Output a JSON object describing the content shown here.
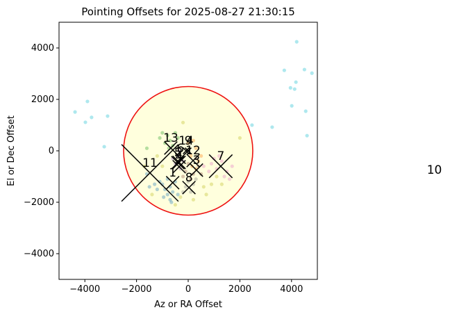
{
  "chart_data": {
    "type": "scatter",
    "title": "Pointing Offsets for 2025-08-27 21:30:15",
    "xlabel": "Az or RA Offset",
    "ylabel": "El or Dec Offset",
    "xlim": [
      -5000,
      5000
    ],
    "ylim": [
      -5000,
      5000
    ],
    "xticks": [
      {
        "value": -4000,
        "label": "−4000"
      },
      {
        "value": -2000,
        "label": "−2000"
      },
      0,
      2000,
      4000
    ],
    "yticks": [
      {
        "value": -4000,
        "label": "−4000"
      },
      {
        "value": -2000,
        "label": "−2000"
      },
      0,
      2000,
      4000
    ],
    "circle": {
      "radius": 2500,
      "edge_color": "#ee1111",
      "fill_color": "#ffffdd"
    },
    "series": [
      {
        "color": "#17becf",
        "x": [
          4200,
          3720,
          4500,
          4170,
          3960,
          4120,
          4790,
          4010,
          4550,
          3250,
          2470,
          4600,
          -4380,
          -3900,
          -3740,
          -3980,
          -3120,
          -3250
        ],
        "y": [
          4240,
          3130,
          3160,
          2670,
          2450,
          2400,
          3020,
          1750,
          1540,
          920,
          1000,
          590,
          1510,
          1920,
          1300,
          1110,
          1350,
          160
        ]
      },
      {
        "color": "#bcbd22",
        "x": [
          -1700,
          -1200,
          -300,
          600,
          900,
          -1000,
          1100,
          -200,
          700,
          -1400,
          200,
          1300,
          -500,
          2000
        ],
        "y": [
          -600,
          -200,
          -1800,
          -1400,
          -1300,
          -600,
          -1000,
          1100,
          -1700,
          -1700,
          -1900,
          -1300,
          -2100,
          500
        ]
      },
      {
        "color": "#1f77b4",
        "x": [
          -1000,
          -900,
          -800,
          -1100,
          -700,
          -600,
          -1300,
          -500,
          -950,
          -1200,
          -700,
          -400,
          -1500,
          -800,
          -1600,
          -650
        ],
        "y": [
          -1300,
          -1500,
          -1700,
          -1200,
          -1900,
          -1600,
          -1300,
          -1200,
          -1800,
          -1500,
          -1400,
          -1700,
          -1400,
          -1100,
          -900,
          -2000
        ]
      },
      {
        "color": "#2ca02c",
        "x": [
          -1000,
          -800,
          -700,
          -900,
          -600,
          -1100,
          -500,
          -750,
          -1600,
          -400
        ],
        "y": [
          700,
          600,
          400,
          300,
          200,
          500,
          700,
          100,
          100,
          500
        ]
      },
      {
        "color": "#ff7f0e",
        "x": [
          200,
          300,
          100,
          400,
          150,
          300,
          0,
          500
        ],
        "y": [
          400,
          100,
          -200,
          -400,
          -600,
          -700,
          300,
          -200
        ]
      },
      {
        "color": "#9467bd",
        "x": [
          -400,
          -500,
          -300,
          -600,
          -200,
          -350
        ],
        "y": [
          -200,
          -500,
          -700,
          -300,
          -400,
          0
        ]
      },
      {
        "color": "#8c564b",
        "x": [
          0,
          200,
          -100,
          400,
          100,
          300,
          -200,
          500
        ],
        "y": [
          -500,
          -900,
          -800,
          -600,
          -1100,
          -300,
          -1000,
          -900
        ]
      },
      {
        "color": "#e377c2",
        "x": [
          900,
          1100,
          1300,
          1500,
          1000,
          1400,
          1700,
          1600,
          800,
          1200,
          600
        ],
        "y": [
          -500,
          -700,
          -400,
          -800,
          -300,
          -1000,
          -600,
          -1100,
          -800,
          -200,
          -600
        ]
      },
      {
        "color": "#7f7f7f",
        "x": [
          0,
          100,
          -100,
          200,
          -200,
          300
        ],
        "y": [
          -1200,
          -1600,
          -1400,
          -1300,
          -1600,
          -1100
        ]
      }
    ],
    "annotations": [
      {
        "label": "1",
        "x": -600,
        "y": -1240,
        "size": 250
      },
      {
        "label": "2",
        "x": -350,
        "y": -450,
        "size": 250
      },
      {
        "label": "3",
        "x": 320,
        "y": -750,
        "size": 250
      },
      {
        "label": "4",
        "x": -350,
        "y": -620,
        "size": 250
      },
      {
        "label": "5",
        "x": -400,
        "y": -460,
        "size": 250
      },
      {
        "label": "6",
        "x": -300,
        "y": -300,
        "size": 200
      },
      {
        "label": "7",
        "x": 1260,
        "y": -600,
        "size": 450
      },
      {
        "label": "8",
        "x": 30,
        "y": -1430,
        "size": 250
      },
      {
        "label": "9",
        "x": 0,
        "y": 0,
        "size": 120
      },
      {
        "label": "10",
        "x": 9530,
        "y": -1135,
        "size": 0
      },
      {
        "label": "11",
        "x": -1480,
        "y": -860,
        "size": 1100
      },
      {
        "label": "12",
        "x": 190,
        "y": -380,
        "size": 250
      },
      {
        "label": "13",
        "x": -673,
        "y": 108,
        "size": 250
      },
      {
        "label": "14",
        "x": -80,
        "y": 0,
        "size": 120
      }
    ]
  }
}
